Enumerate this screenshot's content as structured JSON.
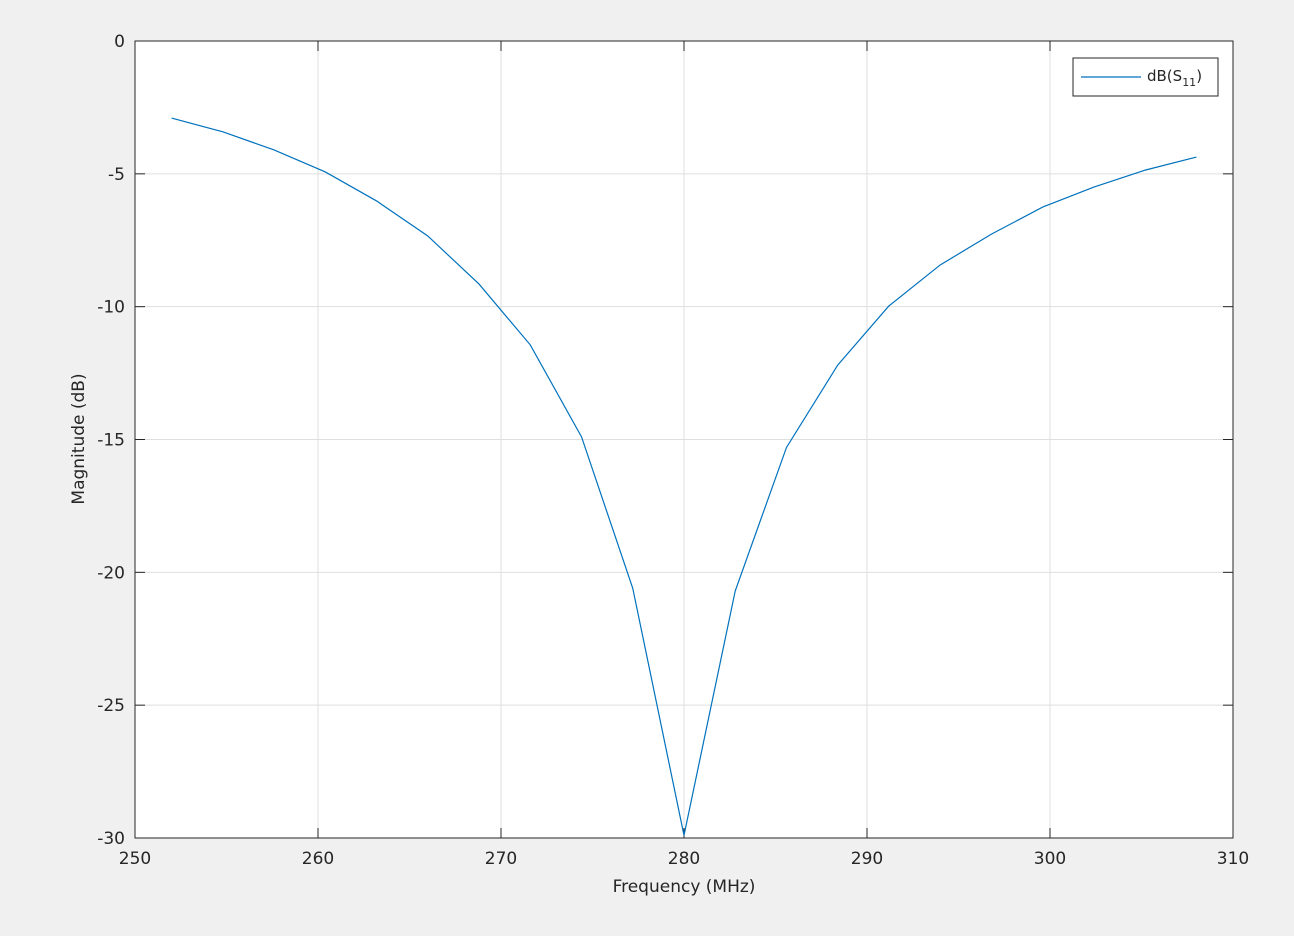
{
  "chart_data": {
    "type": "line",
    "xlabel": "Frequency (MHz)",
    "ylabel": "Magnitude (dB)",
    "x": [
      252,
      254.8,
      257.6,
      260.4,
      263.2,
      266,
      268.8,
      271.6,
      274.4,
      277.2,
      280,
      282.8,
      285.6,
      288.4,
      291.2,
      294,
      296.8,
      299.6,
      302.4,
      305.2,
      308
    ],
    "series": [
      {
        "name": "dB(S11)",
        "color": "#0072bd",
        "values": [
          -2.9,
          -3.42,
          -4.1,
          -4.93,
          -6.02,
          -7.34,
          -9.15,
          -11.44,
          -14.9,
          -20.6,
          -29.9,
          -20.7,
          -15.3,
          -12.2,
          -9.97,
          -8.43,
          -7.27,
          -6.25,
          -5.5,
          -4.86,
          -4.37
        ]
      }
    ],
    "xlim": [
      250,
      310
    ],
    "xticks": [
      250,
      260,
      270,
      280,
      290,
      300,
      310
    ],
    "ylim": [
      -30,
      0
    ],
    "yticks": [
      -30,
      -25,
      -20,
      -15,
      -10,
      -5,
      0
    ],
    "grid": true,
    "legend": "northeast"
  }
}
